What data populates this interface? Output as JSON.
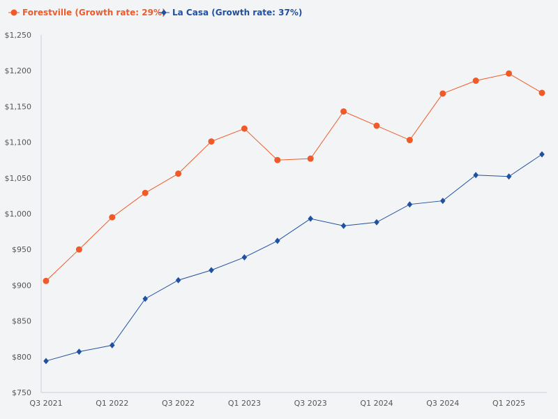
{
  "chart_data": {
    "type": "line",
    "title": "",
    "xlabel": "",
    "ylabel": "",
    "ylim": [
      750,
      1250
    ],
    "yticks": [
      750,
      800,
      850,
      900,
      950,
      1000,
      1050,
      1100,
      1150,
      1200,
      1250
    ],
    "ytick_labels": [
      "$750",
      "$800",
      "$850",
      "$900",
      "$950",
      "$1,000",
      "$1,050",
      "$1,100",
      "$1,150",
      "$1,200",
      "$1,250"
    ],
    "categories": [
      "Q3 2021",
      "Q4 2021",
      "Q1 2022",
      "Q2 2022",
      "Q3 2022",
      "Q4 2022",
      "Q1 2023",
      "Q2 2023",
      "Q3 2023",
      "Q4 2023",
      "Q1 2024",
      "Q2 2024",
      "Q3 2024",
      "Q4 2024",
      "Q1 2025",
      "Q2 2025"
    ],
    "xtick_labels": [
      "Q3 2021",
      "",
      "Q1 2022",
      "",
      "Q3 2022",
      "",
      "Q1 2023",
      "",
      "Q3 2023",
      "",
      "Q1 2024",
      "",
      "Q3 2024",
      "",
      "Q1 2025",
      ""
    ],
    "legend_position": "top-left",
    "grid": false,
    "series": [
      {
        "name": "Forestville (Growth rate: 29%)",
        "color": "#f05a28",
        "marker": "circle",
        "values": [
          906,
          950,
          995,
          1029,
          1056,
          1101,
          1119,
          1075,
          1077,
          1143,
          1123,
          1103,
          1168,
          1186,
          1196,
          1169
        ]
      },
      {
        "name": "La Casa (Growth rate: 37%)",
        "color": "#2050a0",
        "marker": "diamond",
        "values": [
          794,
          807,
          816,
          881,
          907,
          921,
          939,
          962,
          993,
          983,
          988,
          1013,
          1018,
          1054,
          1052,
          1083
        ]
      }
    ]
  }
}
